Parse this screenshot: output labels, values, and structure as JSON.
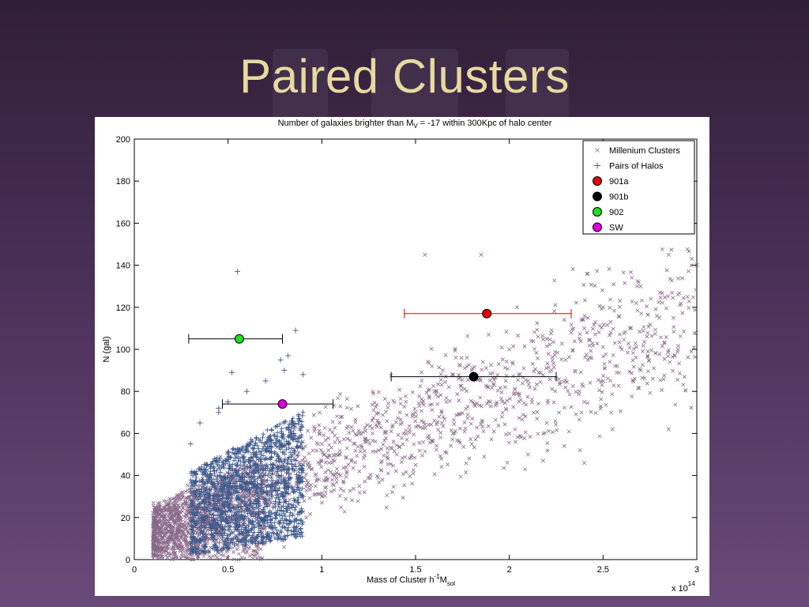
{
  "slide": {
    "title": "Paired Clusters"
  },
  "chart_data": {
    "type": "scatter",
    "title": "Number of galaxies brighter than M",
    "title_sub": "V",
    "title_rest": " = -17 within 300Kpc of halo center",
    "xlabel_main": "Mass of Cluster h",
    "xlabel_sup": "-1",
    "xlabel_m": "M",
    "xlabel_sub": "sol",
    "xlabel": "Mass of Cluster h^-1 M_sol",
    "ylabel": "N (gal)",
    "x_multiplier": "x 10",
    "x_multiplier_exp": "14",
    "xlim": [
      0,
      3
    ],
    "ylim": [
      0,
      200
    ],
    "x_ticks": [
      0,
      0.5,
      1,
      1.5,
      2,
      2.5,
      3
    ],
    "x_tick_labels": [
      "0",
      "0.5",
      "1",
      "1.5",
      "2",
      "2.5",
      "3"
    ],
    "y_ticks": [
      0,
      20,
      40,
      60,
      80,
      100,
      120,
      140,
      160,
      180,
      200
    ],
    "y_tick_labels": [
      "0",
      "20",
      "40",
      "60",
      "80",
      "100",
      "120",
      "140",
      "160",
      "180",
      "200"
    ],
    "legend_position": "top-right",
    "grid": false,
    "series": [
      {
        "name": "Millenium Clusters",
        "marker": "x",
        "color": "#8a6a8a",
        "x_range": [
          0.1,
          3.0
        ],
        "y_trend": "N ≈ 8 + 37·M (M in 1e14), spread ±20",
        "points": [
          [
            0.1,
            2
          ],
          [
            0.1,
            22
          ],
          [
            0.15,
            5
          ],
          [
            0.2,
            15
          ],
          [
            0.25,
            8
          ],
          [
            0.3,
            25
          ],
          [
            0.4,
            10
          ],
          [
            0.5,
            30
          ],
          [
            0.6,
            20
          ],
          [
            0.7,
            35
          ],
          [
            0.8,
            28
          ],
          [
            0.9,
            45
          ],
          [
            1.0,
            30
          ],
          [
            1.0,
            55
          ],
          [
            1.1,
            40
          ],
          [
            1.2,
            60
          ],
          [
            1.2,
            35
          ],
          [
            1.3,
            65
          ],
          [
            1.4,
            50
          ],
          [
            1.5,
            70
          ],
          [
            1.5,
            45
          ],
          [
            1.6,
            80
          ],
          [
            1.7,
            60
          ],
          [
            1.8,
            90
          ],
          [
            1.8,
            55
          ],
          [
            1.9,
            75
          ],
          [
            2.0,
            100
          ],
          [
            2.0,
            60
          ],
          [
            2.1,
            85
          ],
          [
            2.2,
            105
          ],
          [
            2.2,
            65
          ],
          [
            2.3,
            95
          ],
          [
            2.4,
            110
          ],
          [
            2.4,
            75
          ],
          [
            2.5,
            120
          ],
          [
            2.5,
            85
          ],
          [
            2.6,
            100
          ],
          [
            2.7,
            130
          ],
          [
            2.7,
            90
          ],
          [
            2.8,
            115
          ],
          [
            2.85,
            145
          ],
          [
            2.9,
            100
          ],
          [
            2.95,
            125
          ],
          [
            3.0,
            140
          ],
          [
            1.55,
            145
          ],
          [
            1.85,
            145
          ],
          [
            2.18,
            47
          ],
          [
            2.4,
            46
          ],
          [
            2.55,
            62
          ],
          [
            2.85,
            62
          ],
          [
            2.1,
            50
          ],
          [
            0.28,
            7
          ]
        ]
      },
      {
        "name": "Pairs of Halos",
        "marker": "+",
        "color": "#3e5a8c",
        "x_range": [
          0.3,
          0.9
        ],
        "points": [
          [
            0.3,
            25
          ],
          [
            0.3,
            55
          ],
          [
            0.35,
            30
          ],
          [
            0.35,
            65
          ],
          [
            0.4,
            40
          ],
          [
            0.45,
            70
          ],
          [
            0.5,
            35
          ],
          [
            0.5,
            75
          ],
          [
            0.55,
            45
          ],
          [
            0.6,
            80
          ],
          [
            0.65,
            50
          ],
          [
            0.7,
            85
          ],
          [
            0.75,
            55
          ],
          [
            0.8,
            90
          ],
          [
            0.85,
            60
          ],
          [
            0.9,
            88
          ],
          [
            0.9,
            30
          ],
          [
            0.55,
            137
          ],
          [
            0.86,
            109
          ],
          [
            0.82,
            97
          ],
          [
            0.78,
            95
          ],
          [
            0.52,
            89
          ],
          [
            0.45,
            72
          ]
        ]
      },
      {
        "name": "901a",
        "marker": "o",
        "color": "#e00000",
        "points": [
          [
            1.88,
            117
          ]
        ],
        "xerr": [
          1.44,
          2.33
        ]
      },
      {
        "name": "901b",
        "marker": "o",
        "color": "#000000",
        "points": [
          [
            1.81,
            87
          ]
        ],
        "xerr": [
          1.37,
          2.25
        ]
      },
      {
        "name": "902",
        "marker": "o",
        "color": "#22dd22",
        "points": [
          [
            0.56,
            105
          ]
        ],
        "xerr": [
          0.29,
          0.79
        ]
      },
      {
        "name": "SW",
        "marker": "o",
        "color": "#e000e0",
        "points": [
          [
            0.79,
            74
          ]
        ],
        "xerr": [
          0.47,
          1.06
        ]
      }
    ]
  }
}
